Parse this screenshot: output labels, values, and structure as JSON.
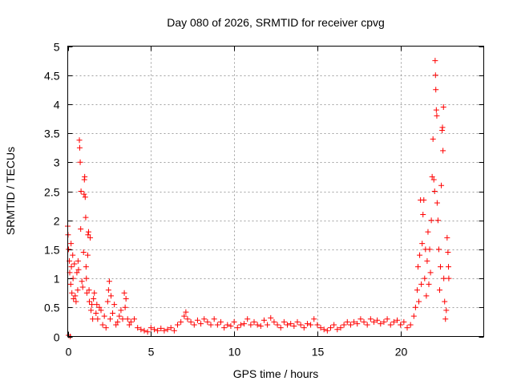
{
  "chart_data": {
    "type": "scatter",
    "title": "Day 080 of 2026, SRMTID for receiver cpvg",
    "xlabel": "GPS time / hours",
    "ylabel": "SRMTID / TECUs",
    "xlim": [
      0,
      25
    ],
    "ylim": [
      0,
      5
    ],
    "x_ticks": [
      0,
      5,
      10,
      15,
      20
    ],
    "y_ticks": [
      0,
      0.5,
      1,
      1.5,
      2,
      2.5,
      3,
      3.5,
      4,
      4.5,
      5
    ],
    "x_tick_labels": [
      "0",
      "5",
      "10",
      "15",
      "20"
    ],
    "y_tick_labels": [
      "0",
      "0.5",
      "1",
      "1.5",
      "2",
      "2.5",
      "3",
      "3.5",
      "4",
      "4.5",
      "5"
    ],
    "grid": true,
    "marker": "+",
    "color": "#ff0000",
    "series": [
      {
        "name": "SRMTID",
        "points": [
          [
            0.0,
            1.9
          ],
          [
            0.02,
            1.75
          ],
          [
            0.05,
            1.5
          ],
          [
            0.05,
            0.02
          ],
          [
            0.1,
            1.3
          ],
          [
            0.12,
            1.1
          ],
          [
            0.15,
            0.0
          ],
          [
            0.18,
            0.9
          ],
          [
            0.2,
            1.6
          ],
          [
            0.22,
            1.2
          ],
          [
            0.25,
            0.75
          ],
          [
            0.3,
            1.4
          ],
          [
            0.32,
            1.0
          ],
          [
            0.35,
            0.65
          ],
          [
            0.4,
            1.25
          ],
          [
            0.45,
            0.7
          ],
          [
            0.5,
            0.6
          ],
          [
            0.55,
            1.1
          ],
          [
            0.6,
            0.8
          ],
          [
            0.62,
            1.3
          ],
          [
            0.65,
            1.15
          ],
          [
            0.7,
            3.38
          ],
          [
            0.72,
            3.25
          ],
          [
            0.75,
            3.0
          ],
          [
            0.78,
            1.85
          ],
          [
            0.8,
            2.5
          ],
          [
            0.85,
            0.95
          ],
          [
            0.9,
            0.85
          ],
          [
            0.95,
            1.45
          ],
          [
            0.98,
            2.45
          ],
          [
            1.0,
            2.7
          ],
          [
            1.02,
            2.75
          ],
          [
            1.05,
            2.4
          ],
          [
            1.08,
            2.05
          ],
          [
            1.1,
            1.2
          ],
          [
            1.12,
            1.0
          ],
          [
            1.15,
            0.75
          ],
          [
            1.2,
            1.4
          ],
          [
            1.22,
            1.75
          ],
          [
            1.25,
            1.8
          ],
          [
            1.28,
            0.8
          ],
          [
            1.3,
            0.6
          ],
          [
            1.35,
            1.7
          ],
          [
            1.4,
            0.45
          ],
          [
            1.45,
            0.55
          ],
          [
            1.5,
            0.3
          ],
          [
            1.55,
            0.65
          ],
          [
            1.6,
            0.75
          ],
          [
            1.7,
            0.4
          ],
          [
            1.75,
            0.55
          ],
          [
            1.8,
            0.3
          ],
          [
            1.9,
            0.5
          ],
          [
            2.0,
            0.45
          ],
          [
            2.1,
            0.2
          ],
          [
            2.2,
            0.35
          ],
          [
            2.3,
            0.15
          ],
          [
            2.4,
            0.6
          ],
          [
            2.45,
            0.8
          ],
          [
            2.5,
            0.95
          ],
          [
            2.55,
            0.3
          ],
          [
            2.6,
            0.7
          ],
          [
            2.7,
            0.4
          ],
          [
            2.8,
            0.55
          ],
          [
            2.9,
            0.2
          ],
          [
            3.0,
            0.25
          ],
          [
            3.1,
            0.35
          ],
          [
            3.2,
            0.45
          ],
          [
            3.3,
            0.3
          ],
          [
            3.4,
            0.75
          ],
          [
            3.45,
            0.5
          ],
          [
            3.5,
            0.65
          ],
          [
            3.6,
            0.3
          ],
          [
            3.7,
            0.2
          ],
          [
            3.8,
            0.25
          ],
          [
            4.0,
            0.3
          ],
          [
            4.2,
            0.15
          ],
          [
            4.4,
            0.12
          ],
          [
            4.6,
            0.1
          ],
          [
            4.8,
            0.08
          ],
          [
            5.0,
            0.15
          ],
          [
            5.2,
            0.12
          ],
          [
            5.4,
            0.1
          ],
          [
            5.6,
            0.14
          ],
          [
            5.8,
            0.1
          ],
          [
            6.0,
            0.12
          ],
          [
            6.2,
            0.15
          ],
          [
            6.4,
            0.1
          ],
          [
            6.6,
            0.2
          ],
          [
            6.8,
            0.25
          ],
          [
            7.0,
            0.35
          ],
          [
            7.1,
            0.42
          ],
          [
            7.2,
            0.3
          ],
          [
            7.4,
            0.25
          ],
          [
            7.6,
            0.2
          ],
          [
            7.8,
            0.28
          ],
          [
            8.0,
            0.22
          ],
          [
            8.2,
            0.3
          ],
          [
            8.4,
            0.25
          ],
          [
            8.6,
            0.2
          ],
          [
            8.8,
            0.3
          ],
          [
            9.0,
            0.2
          ],
          [
            9.2,
            0.25
          ],
          [
            9.4,
            0.15
          ],
          [
            9.6,
            0.2
          ],
          [
            9.8,
            0.18
          ],
          [
            10.0,
            0.25
          ],
          [
            10.2,
            0.15
          ],
          [
            10.4,
            0.2
          ],
          [
            10.6,
            0.22
          ],
          [
            10.8,
            0.3
          ],
          [
            11.0,
            0.2
          ],
          [
            11.2,
            0.25
          ],
          [
            11.4,
            0.2
          ],
          [
            11.6,
            0.18
          ],
          [
            11.8,
            0.28
          ],
          [
            12.0,
            0.2
          ],
          [
            12.2,
            0.32
          ],
          [
            12.4,
            0.25
          ],
          [
            12.6,
            0.2
          ],
          [
            12.8,
            0.15
          ],
          [
            13.0,
            0.25
          ],
          [
            13.2,
            0.2
          ],
          [
            13.4,
            0.22
          ],
          [
            13.6,
            0.18
          ],
          [
            13.8,
            0.25
          ],
          [
            14.0,
            0.2
          ],
          [
            14.2,
            0.15
          ],
          [
            14.4,
            0.22
          ],
          [
            14.6,
            0.2
          ],
          [
            14.8,
            0.3
          ],
          [
            15.0,
            0.2
          ],
          [
            15.2,
            0.15
          ],
          [
            15.4,
            0.12
          ],
          [
            15.6,
            0.1
          ],
          [
            15.8,
            0.15
          ],
          [
            16.0,
            0.2
          ],
          [
            16.2,
            0.12
          ],
          [
            16.4,
            0.15
          ],
          [
            16.6,
            0.2
          ],
          [
            16.8,
            0.25
          ],
          [
            17.0,
            0.2
          ],
          [
            17.2,
            0.25
          ],
          [
            17.4,
            0.22
          ],
          [
            17.6,
            0.3
          ],
          [
            17.8,
            0.25
          ],
          [
            18.0,
            0.2
          ],
          [
            18.2,
            0.3
          ],
          [
            18.4,
            0.25
          ],
          [
            18.6,
            0.28
          ],
          [
            18.8,
            0.22
          ],
          [
            19.0,
            0.25
          ],
          [
            19.2,
            0.3
          ],
          [
            19.4,
            0.2
          ],
          [
            19.6,
            0.25
          ],
          [
            19.8,
            0.28
          ],
          [
            20.0,
            0.2
          ],
          [
            20.2,
            0.25
          ],
          [
            20.4,
            0.15
          ],
          [
            20.6,
            0.2
          ],
          [
            20.8,
            0.35
          ],
          [
            20.9,
            0.5
          ],
          [
            21.0,
            0.8
          ],
          [
            21.05,
            1.2
          ],
          [
            21.1,
            0.6
          ],
          [
            21.15,
            1.4
          ],
          [
            21.2,
            2.35
          ],
          [
            21.25,
            0.9
          ],
          [
            21.3,
            1.6
          ],
          [
            21.35,
            2.1
          ],
          [
            21.4,
            2.35
          ],
          [
            21.45,
            1.0
          ],
          [
            21.5,
            1.5
          ],
          [
            21.55,
            0.7
          ],
          [
            21.6,
            1.3
          ],
          [
            21.65,
            1.8
          ],
          [
            21.7,
            0.9
          ],
          [
            21.75,
            1.5
          ],
          [
            21.8,
            1.1
          ],
          [
            21.85,
            2.0
          ],
          [
            21.9,
            2.75
          ],
          [
            21.95,
            3.4
          ],
          [
            22.0,
            2.7
          ],
          [
            22.05,
            2.5
          ],
          [
            22.08,
            4.75
          ],
          [
            22.1,
            4.5
          ],
          [
            22.12,
            4.25
          ],
          [
            22.15,
            3.9
          ],
          [
            22.18,
            3.8
          ],
          [
            22.2,
            2.3
          ],
          [
            22.25,
            2.0
          ],
          [
            22.3,
            1.5
          ],
          [
            22.35,
            0.8
          ],
          [
            22.4,
            1.2
          ],
          [
            22.45,
            2.6
          ],
          [
            22.5,
            3.55
          ],
          [
            22.52,
            3.6
          ],
          [
            22.55,
            3.2
          ],
          [
            22.58,
            3.95
          ],
          [
            22.6,
            1.0
          ],
          [
            22.65,
            0.6
          ],
          [
            22.7,
            0.3
          ],
          [
            22.75,
            0.45
          ],
          [
            22.8,
            1.7
          ],
          [
            22.85,
            1.45
          ],
          [
            22.88,
            1.2
          ],
          [
            22.9,
            1.0
          ]
        ]
      }
    ]
  }
}
